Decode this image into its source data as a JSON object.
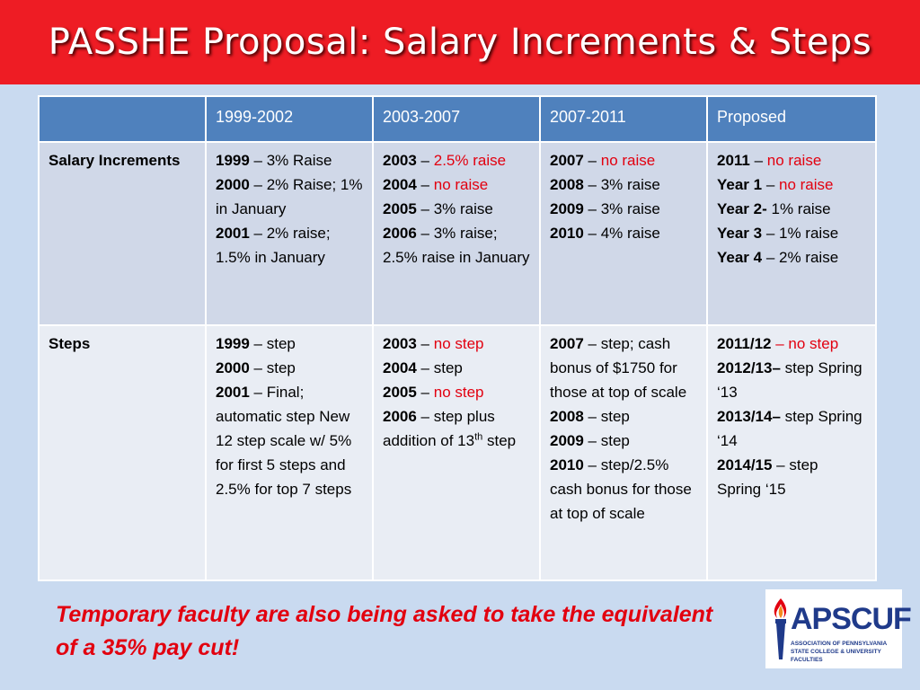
{
  "slide": {
    "title": "PASSHE Proposal: Salary Increments & Steps"
  },
  "table": {
    "headers": [
      "",
      "1999-2002",
      "2003-2007",
      "2007-2011",
      "Proposed"
    ],
    "rows": [
      {
        "label": "Salary Increments",
        "cells": [
          [
            [
              {
                "t": "1999",
                "b": true
              },
              {
                "t": " – 3% Raise"
              }
            ],
            [
              {
                "t": "2000",
                "b": true
              },
              {
                "t": " – 2% Raise; 1% in January"
              }
            ],
            [
              {
                "t": "2001",
                "b": true
              },
              {
                "t": " – 2% raise; 1.5% in January"
              }
            ]
          ],
          [
            [
              {
                "t": "2003",
                "b": true
              },
              {
                "t": " – "
              },
              {
                "t": "2.5% raise",
                "red": true
              }
            ],
            [
              {
                "t": "2004",
                "b": true
              },
              {
                "t": " – "
              },
              {
                "t": "no raise",
                "red": true
              }
            ],
            [
              {
                "t": "2005",
                "b": true
              },
              {
                "t": " – 3% raise"
              }
            ],
            [
              {
                "t": "2006",
                "b": true
              },
              {
                "t": " – 3% raise; 2.5% raise in January"
              }
            ]
          ],
          [
            [
              {
                "t": "2007",
                "b": true
              },
              {
                "t": " – "
              },
              {
                "t": "no raise",
                "red": true
              }
            ],
            [
              {
                "t": "2008",
                "b": true
              },
              {
                "t": " – 3% raise"
              }
            ],
            [
              {
                "t": "2009",
                "b": true
              },
              {
                "t": " – 3% raise"
              }
            ],
            [
              {
                "t": "2010",
                "b": true
              },
              {
                "t": " – 4% raise"
              }
            ]
          ],
          [
            [
              {
                "t": "2011",
                "b": true
              },
              {
                "t": " – "
              },
              {
                "t": "no raise",
                "red": true
              }
            ],
            [
              {
                "t": "Year 1",
                "b": true
              },
              {
                "t": " – "
              },
              {
                "t": "no raise",
                "red": true
              }
            ],
            [
              {
                "t": "Year 2-",
                "b": true
              },
              {
                "t": " 1% raise"
              }
            ],
            [
              {
                "t": "Year 3",
                "b": true
              },
              {
                "t": " – 1% raise"
              }
            ],
            [
              {
                "t": "Year 4",
                "b": true
              },
              {
                "t": " – 2% raise"
              }
            ]
          ]
        ]
      },
      {
        "label": "Steps",
        "cells": [
          [
            [
              {
                "t": "1999",
                "b": true
              },
              {
                "t": " – step"
              }
            ],
            [
              {
                "t": "2000",
                "b": true
              },
              {
                "t": " – step"
              }
            ],
            [
              {
                "t": "2001",
                "b": true
              },
              {
                "t": " – Final; automatic step New 12 step scale w/ 5% for first 5 steps and 2.5% for top 7 steps"
              }
            ]
          ],
          [
            [
              {
                "t": "2003",
                "b": true
              },
              {
                "t": " – "
              },
              {
                "t": "no step",
                "red": true
              }
            ],
            [
              {
                "t": "2004",
                "b": true
              },
              {
                "t": " – step"
              }
            ],
            [
              {
                "t": "2005",
                "b": true
              },
              {
                "t": " – "
              },
              {
                "t": "no step",
                "red": true
              }
            ],
            [
              {
                "t": "2006",
                "b": true
              },
              {
                "t": " – step plus addition of 13"
              },
              {
                "t": "th",
                "sup": true
              },
              {
                "t": " step"
              }
            ]
          ],
          [
            [
              {
                "t": "2007",
                "b": true
              },
              {
                "t": " – step; cash bonus of $1750 for those at top of scale"
              }
            ],
            [
              {
                "t": "2008",
                "b": true
              },
              {
                "t": " – step"
              }
            ],
            [
              {
                "t": "2009",
                "b": true
              },
              {
                "t": " – step"
              }
            ],
            [
              {
                "t": "2010",
                "b": true
              },
              {
                "t": " – step/2.5% cash bonus for those at top of scale"
              }
            ]
          ],
          [
            [
              {
                "t": "2011/12",
                "b": true
              },
              {
                "t": " – no step",
                "red": true
              }
            ],
            [
              {
                "t": "2012/13–",
                "b": true
              },
              {
                "t": " step Spring ‘13"
              }
            ],
            [
              {
                "t": "2013/14–",
                "b": true
              },
              {
                "t": " step Spring ‘14"
              }
            ],
            [
              {
                "t": "2014/15",
                "b": true
              },
              {
                "t": " – step Spring ‘15"
              }
            ]
          ]
        ]
      }
    ]
  },
  "note": "Temporary faculty are also being asked to take the equivalent of a 35% pay cut!",
  "logo": {
    "name": "APSCUF",
    "subtitle_line1": "ASSOCIATION OF PENNSYLVANIA",
    "subtitle_line2": "STATE COLLEGE & UNIVERSITY FACULTIES"
  }
}
